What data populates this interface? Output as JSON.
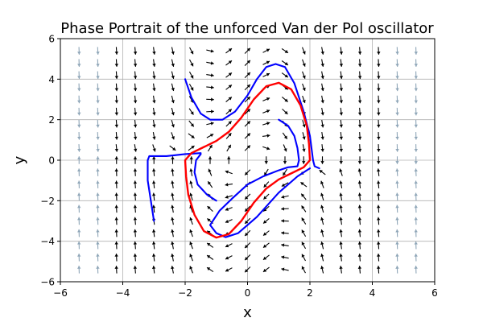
{
  "chart_data": {
    "type": "line",
    "title": "Phase Portrait of the unforced Van der Pol oscillator",
    "xlabel": "x",
    "ylabel": "y",
    "xlim": [
      -6,
      6
    ],
    "ylim": [
      -6,
      6
    ],
    "xticks": [
      -6,
      -4,
      -2,
      0,
      2,
      4,
      6
    ],
    "yticks": [
      -6,
      -4,
      -2,
      0,
      2,
      4,
      6
    ],
    "xtick_labels": [
      "−6",
      "−4",
      "−2",
      "0",
      "2",
      "4",
      "6"
    ],
    "ytick_labels": [
      "−6",
      "−4",
      "−2",
      "0",
      "2",
      "4",
      "6"
    ],
    "grid": true,
    "vector_field": {
      "equation_mu": 1,
      "x_samples": [
        -5.4,
        -4.8,
        -4.2,
        -3.6,
        -3.0,
        -2.4,
        -1.8,
        -1.2,
        -0.6,
        0.0,
        0.6,
        1.2,
        1.8,
        2.4,
        3.0,
        3.6,
        4.2,
        4.8,
        5.4
      ],
      "y_samples": [
        -5.4,
        -4.8,
        -4.2,
        -3.6,
        -3.0,
        -2.4,
        -1.8,
        -1.2,
        -0.6,
        0.0,
        0.6,
        1.2,
        1.8,
        2.4,
        3.0,
        3.6,
        4.2,
        4.8,
        5.4
      ],
      "colors": {
        "dark": "#000000",
        "light": "#8fa6b8"
      }
    },
    "series": [
      {
        "color": "#0000ff",
        "points": [
          [
            -2.0,
            4.0
          ],
          [
            -1.8,
            3.1
          ],
          [
            -1.5,
            2.3
          ],
          [
            -1.2,
            2.0
          ],
          [
            -0.8,
            2.0
          ],
          [
            -0.4,
            2.4
          ],
          [
            0.0,
            3.2
          ],
          [
            0.3,
            4.0
          ],
          [
            0.6,
            4.6
          ],
          [
            0.9,
            4.75
          ],
          [
            1.2,
            4.6
          ],
          [
            1.5,
            3.8
          ],
          [
            1.8,
            2.4
          ],
          [
            2.0,
            1.2
          ],
          [
            2.1,
            0.0
          ],
          [
            2.15,
            -0.3
          ],
          [
            2.3,
            -0.4
          ]
        ]
      },
      {
        "color": "#0000ff",
        "points": [
          [
            1.0,
            2.0
          ],
          [
            1.3,
            1.7
          ],
          [
            1.5,
            1.2
          ],
          [
            1.6,
            0.6
          ],
          [
            1.65,
            0.0
          ],
          [
            1.6,
            -0.3
          ],
          [
            1.3,
            -0.35
          ],
          [
            1.0,
            -0.5
          ],
          [
            0.5,
            -0.8
          ],
          [
            0.0,
            -1.2
          ],
          [
            -0.5,
            -1.9
          ],
          [
            -0.9,
            -2.5
          ],
          [
            -1.2,
            -3.2
          ],
          [
            -1.0,
            -3.6
          ],
          [
            -0.7,
            -3.8
          ],
          [
            -0.3,
            -3.6
          ],
          [
            0.3,
            -2.8
          ],
          [
            1.0,
            -1.6
          ],
          [
            1.6,
            -0.8
          ],
          [
            2.0,
            -0.4
          ]
        ]
      },
      {
        "color": "#0000ff",
        "points": [
          [
            -1.0,
            -2.0
          ],
          [
            -1.3,
            -1.7
          ],
          [
            -1.6,
            -1.2
          ],
          [
            -1.7,
            -0.6
          ],
          [
            -1.65,
            0.0
          ],
          [
            -1.5,
            0.3
          ]
        ]
      },
      {
        "color": "#0000ff",
        "points": [
          [
            -3.0,
            -3.0
          ],
          [
            -3.1,
            -2.0
          ],
          [
            -3.2,
            -1.0
          ],
          [
            -3.2,
            0.0
          ],
          [
            -3.15,
            0.2
          ],
          [
            -2.6,
            0.2
          ],
          [
            -2.0,
            0.3
          ],
          [
            -1.5,
            0.35
          ]
        ]
      },
      {
        "color": "#ff0000",
        "points": [
          [
            2.0,
            0.0
          ],
          [
            1.97,
            0.8
          ],
          [
            1.9,
            1.7
          ],
          [
            1.7,
            2.7
          ],
          [
            1.4,
            3.5
          ],
          [
            1.0,
            3.82
          ],
          [
            0.6,
            3.65
          ],
          [
            0.2,
            3.0
          ],
          [
            -0.2,
            2.1
          ],
          [
            -0.6,
            1.4
          ],
          [
            -1.0,
            0.95
          ],
          [
            -1.4,
            0.65
          ],
          [
            -1.8,
            0.35
          ],
          [
            -2.0,
            0.0
          ],
          [
            -1.97,
            -0.8
          ],
          [
            -1.9,
            -1.7
          ],
          [
            -1.7,
            -2.7
          ],
          [
            -1.4,
            -3.5
          ],
          [
            -1.0,
            -3.82
          ],
          [
            -0.6,
            -3.65
          ],
          [
            -0.2,
            -3.0
          ],
          [
            0.2,
            -2.1
          ],
          [
            0.6,
            -1.4
          ],
          [
            1.0,
            -0.95
          ],
          [
            1.4,
            -0.65
          ],
          [
            1.8,
            -0.35
          ],
          [
            2.0,
            0.0
          ]
        ]
      }
    ]
  }
}
